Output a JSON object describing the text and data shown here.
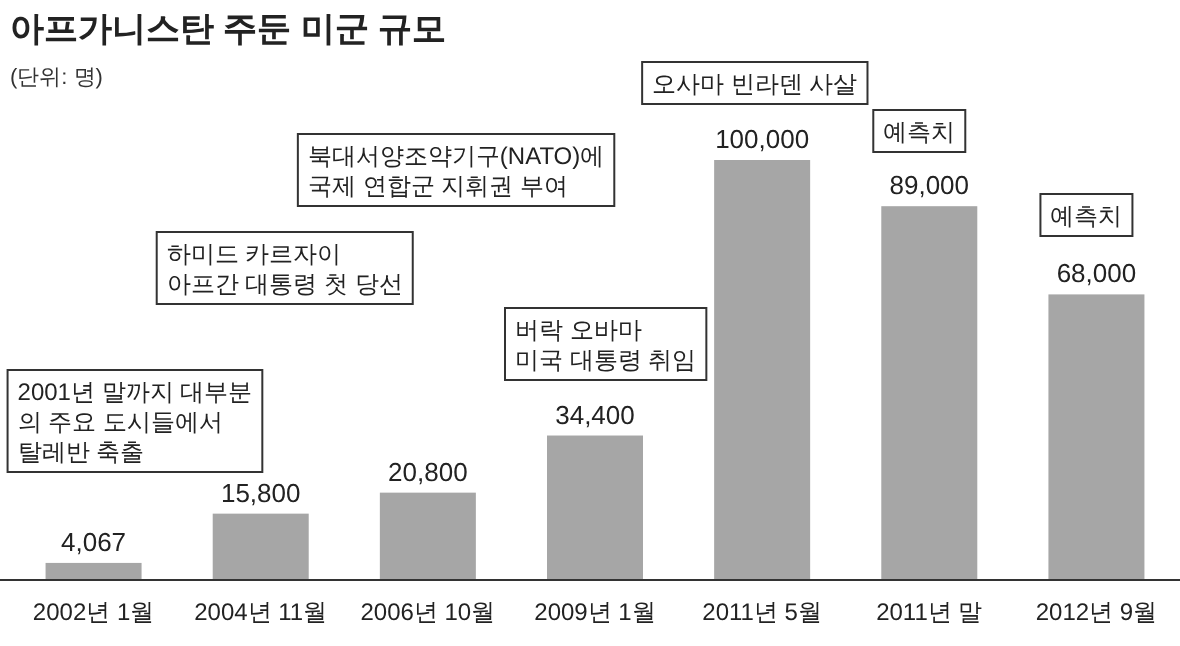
{
  "chart_data": {
    "type": "bar",
    "title": "아프가니스탄 주둔 미군 규모",
    "categories": [
      "2002년 1월",
      "2004년 11월",
      "2006년 10월",
      "2009년 1월",
      "2011년 5월",
      "2011년 말",
      "2012년 9월"
    ],
    "values": [
      4067,
      15800,
      20800,
      34400,
      100000,
      89000,
      68000
    ],
    "value_labels": [
      "4,067",
      "15,800",
      "20,800",
      "34,400",
      "100,000",
      "89,000",
      "68,000"
    ],
    "color": "#a6a6a6",
    "annotations": [
      "(단위: 명)",
      "2001년 말까지 대부분\n의 주요 도시들에서\n탈레반 축출",
      "하미드 카르자이\n아프간 대통령 첫 당선",
      "북대서양조약기구(NATO)에\n국제 연합군 지휘권 부여",
      "버락 오바마\n미국 대통령 취임",
      "오사마 빈라덴 사살",
      "예측치",
      "예측치"
    ]
  }
}
